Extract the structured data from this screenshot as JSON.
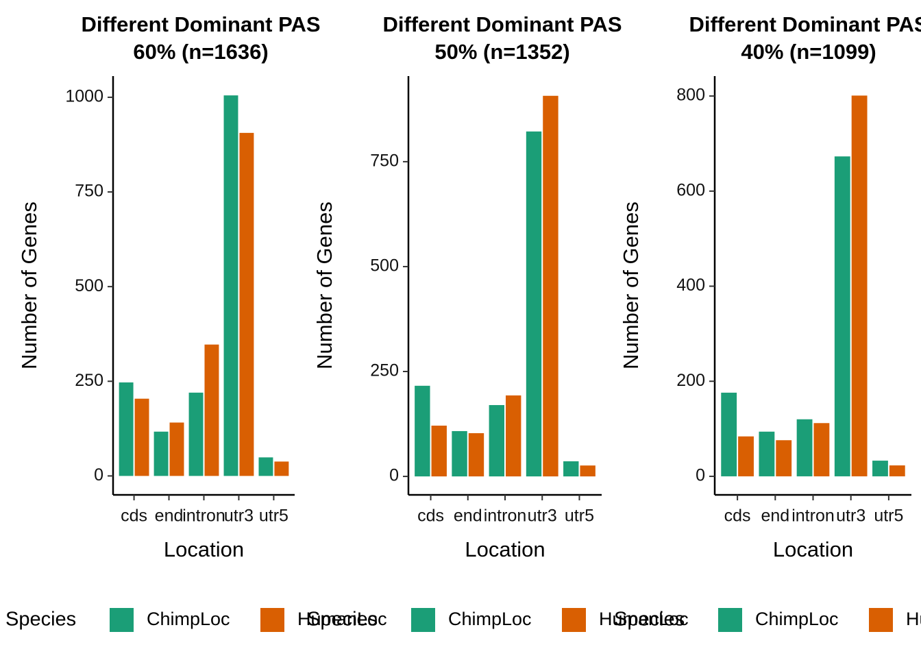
{
  "chart_data": [
    {
      "type": "bar",
      "title": [
        "Different Dominant PAS",
        "60% (n=1636)"
      ],
      "x_label": "Location",
      "y_label": "Number of Genes",
      "categories": [
        "cds",
        "end",
        "intron",
        "utr3",
        "utr5"
      ],
      "series": [
        {
          "name": "ChimpLoc",
          "color": "#1b9e77",
          "values": [
            247,
            117,
            220,
            1005,
            49
          ]
        },
        {
          "name": "HumanLoc",
          "color": "#d95f02",
          "values": [
            204,
            141,
            347,
            906,
            38
          ]
        }
      ],
      "ylim": [
        -50,
        1056
      ],
      "yticks": [
        0,
        250,
        500,
        750,
        1000
      ],
      "legend_title": "Species",
      "legend": "bottom"
    },
    {
      "type": "bar",
      "title": [
        "Different Dominant PAS",
        "50% (n=1352)"
      ],
      "x_label": "Location",
      "y_label": "Number of Genes",
      "categories": [
        "cds",
        "end",
        "intron",
        "utr3",
        "utr5"
      ],
      "series": [
        {
          "name": "ChimpLoc",
          "color": "#1b9e77",
          "values": [
            216,
            108,
            170,
            822,
            36
          ]
        },
        {
          "name": "HumanLoc",
          "color": "#d95f02",
          "values": [
            121,
            103,
            193,
            907,
            26
          ]
        }
      ],
      "ylim": [
        -44,
        954
      ],
      "yticks": [
        0,
        250,
        500,
        750
      ],
      "legend_title": "Species",
      "legend": "bottom"
    },
    {
      "type": "bar",
      "title": [
        "Different Dominant PAS",
        "40% (n=1099)"
      ],
      "x_label": "Location",
      "y_label": "Number of Genes",
      "categories": [
        "cds",
        "end",
        "intron",
        "utr3",
        "utr5"
      ],
      "series": [
        {
          "name": "ChimpLoc",
          "color": "#1b9e77",
          "values": [
            176,
            94,
            120,
            673,
            33
          ]
        },
        {
          "name": "HumanLoc",
          "color": "#d95f02",
          "values": [
            84,
            76,
            112,
            801,
            23
          ]
        }
      ],
      "ylim": [
        -39,
        842
      ],
      "yticks": [
        0,
        200,
        400,
        600,
        800
      ],
      "legend_title": "Species",
      "legend": "bottom"
    }
  ]
}
